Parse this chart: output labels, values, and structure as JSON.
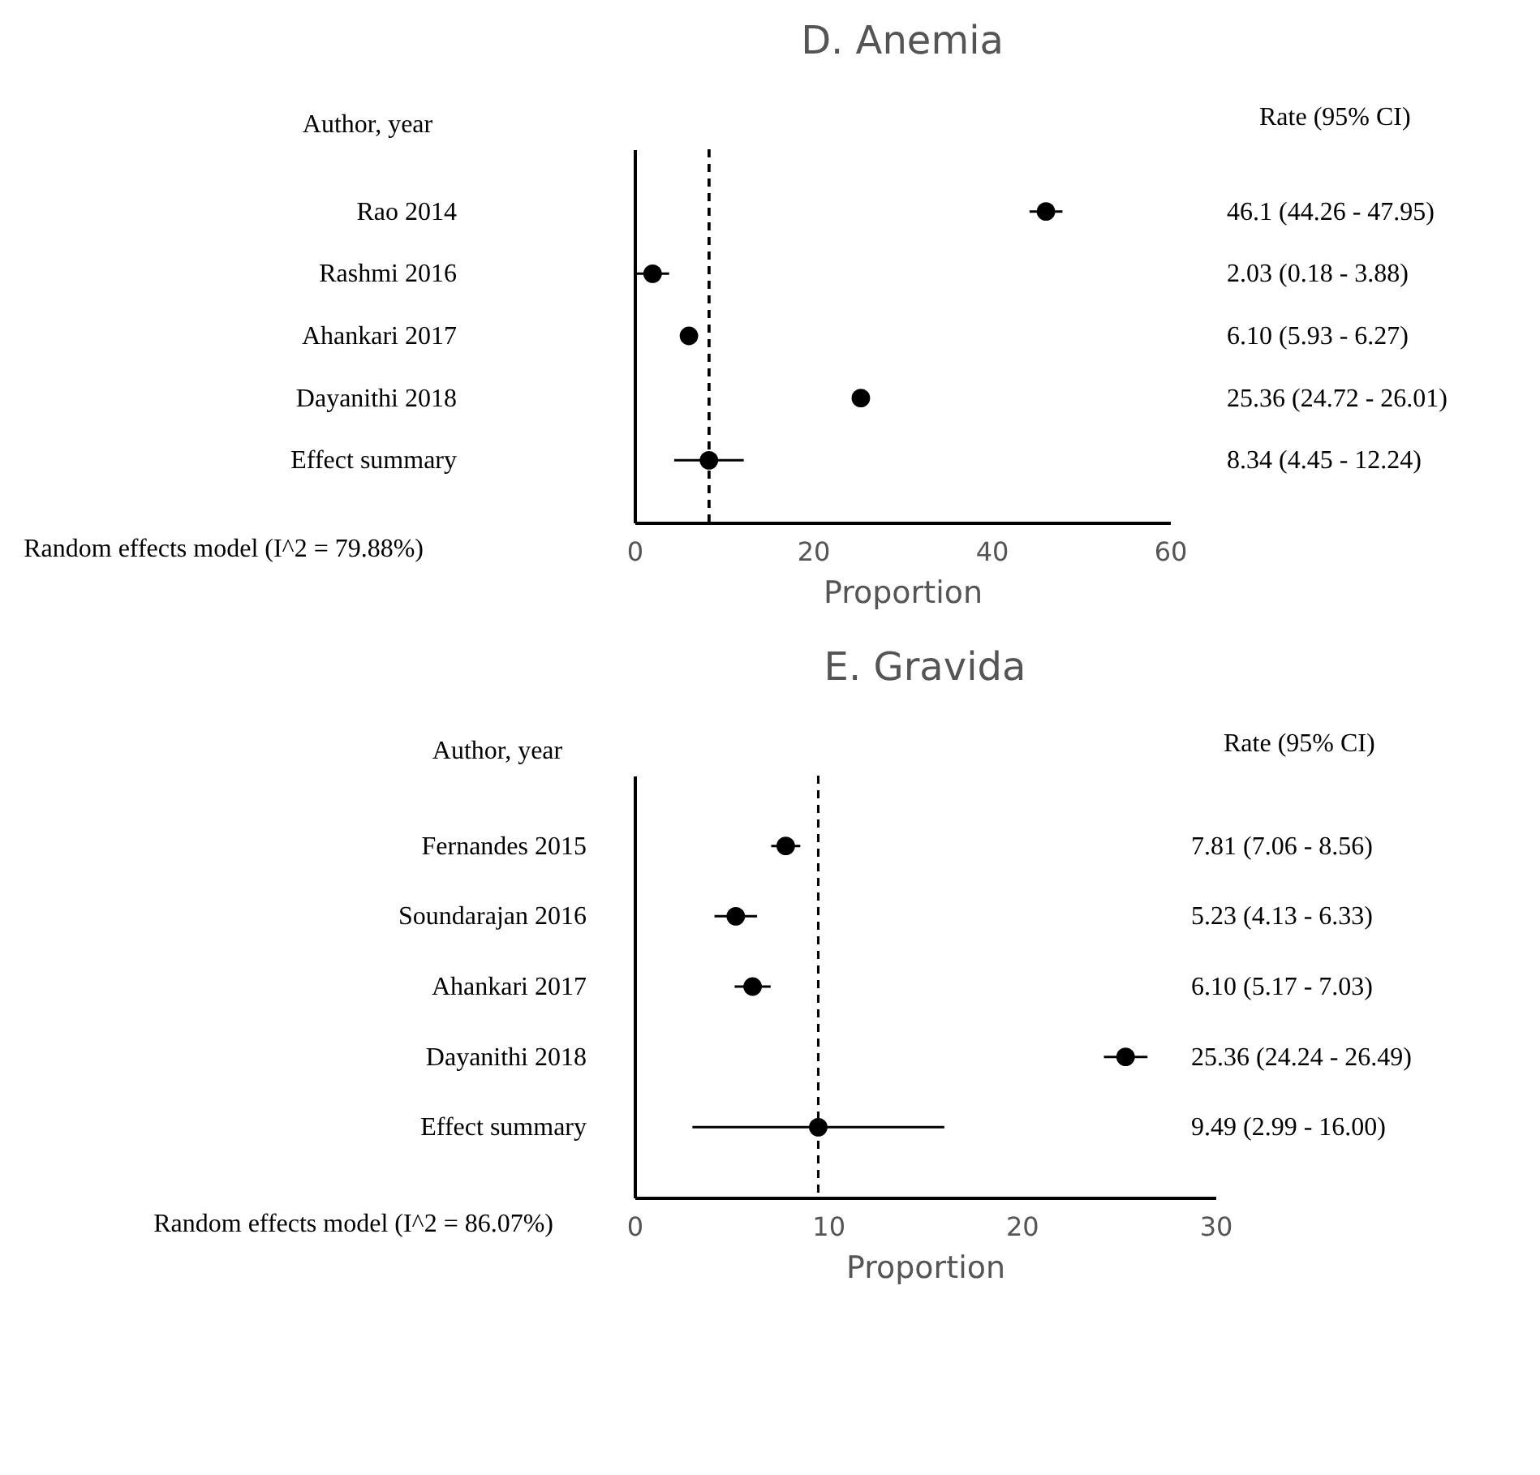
{
  "chart_data": [
    {
      "type": "scatter",
      "orientation": "horizontal",
      "title": "D. Anemia",
      "xlabel": "Proportion",
      "ylabel": "Author, year",
      "categories": [
        "Rao 2014",
        "Rashmi 2016",
        "Ahankari 2017",
        "Dayanithi 2018",
        "Effect summary"
      ],
      "values": [
        46.1,
        2.03,
        6.1,
        25.36,
        8.34
      ],
      "errors": [
        [
          44.26,
          47.95
        ],
        [
          0.18,
          3.88
        ],
        [
          5.93,
          6.27
        ],
        [
          24.72,
          26.01
        ],
        [
          4.45,
          12.24
        ]
      ],
      "color": "#000000",
      "marker": "circle",
      "xlim": [
        0,
        60
      ],
      "xticks": [
        0,
        20,
        40,
        60
      ],
      "ref_lines": [
        {
          "axis": "x",
          "value": 8.34,
          "line_style": "dashed",
          "color": "#000000"
        }
      ],
      "annotations": [
        "Rate (95% CI)",
        "46.1 (44.26 - 47.95)",
        "2.03 (0.18 - 3.88)",
        "6.10  (5.93 - 6.27)",
        "25.36 (24.72 - 26.01)",
        "8.34 (4.45 - 12.24)",
        "Random effects model (I^2 = 79.88%)"
      ],
      "grid": false
    },
    {
      "type": "scatter",
      "orientation": "horizontal",
      "title": "E. Gravida",
      "xlabel": "Proportion",
      "ylabel": "Author, year",
      "categories": [
        "Fernandes 2015",
        "Soundarajan 2016",
        "Ahankari 2017",
        "Dayanithi 2018",
        "Effect summary"
      ],
      "values": [
        7.81,
        5.23,
        6.1,
        25.36,
        9.49
      ],
      "errors": [
        [
          7.06,
          8.56
        ],
        [
          4.13,
          6.33
        ],
        [
          5.17,
          7.03
        ],
        [
          24.24,
          26.49
        ],
        [
          2.99,
          16.0
        ]
      ],
      "color": "#000000",
      "marker": "circle",
      "xlim": [
        0,
        30
      ],
      "xticks": [
        0,
        10,
        20,
        30
      ],
      "ref_lines": [
        {
          "axis": "x",
          "value": 9.49,
          "line_style": "dashed",
          "color": "#000000"
        }
      ],
      "annotations": [
        "Rate (95% CI)",
        "7.81 (7.06 - 8.56)",
        "5.23 (4.13 - 6.33)",
        "6.10 (5.17 - 7.03)",
        "25.36 (24.24 - 26.49)",
        "9.49 (2.99 - 16.00)",
        "Random effects model (I^2 = 86.07%)"
      ],
      "grid": false
    }
  ]
}
